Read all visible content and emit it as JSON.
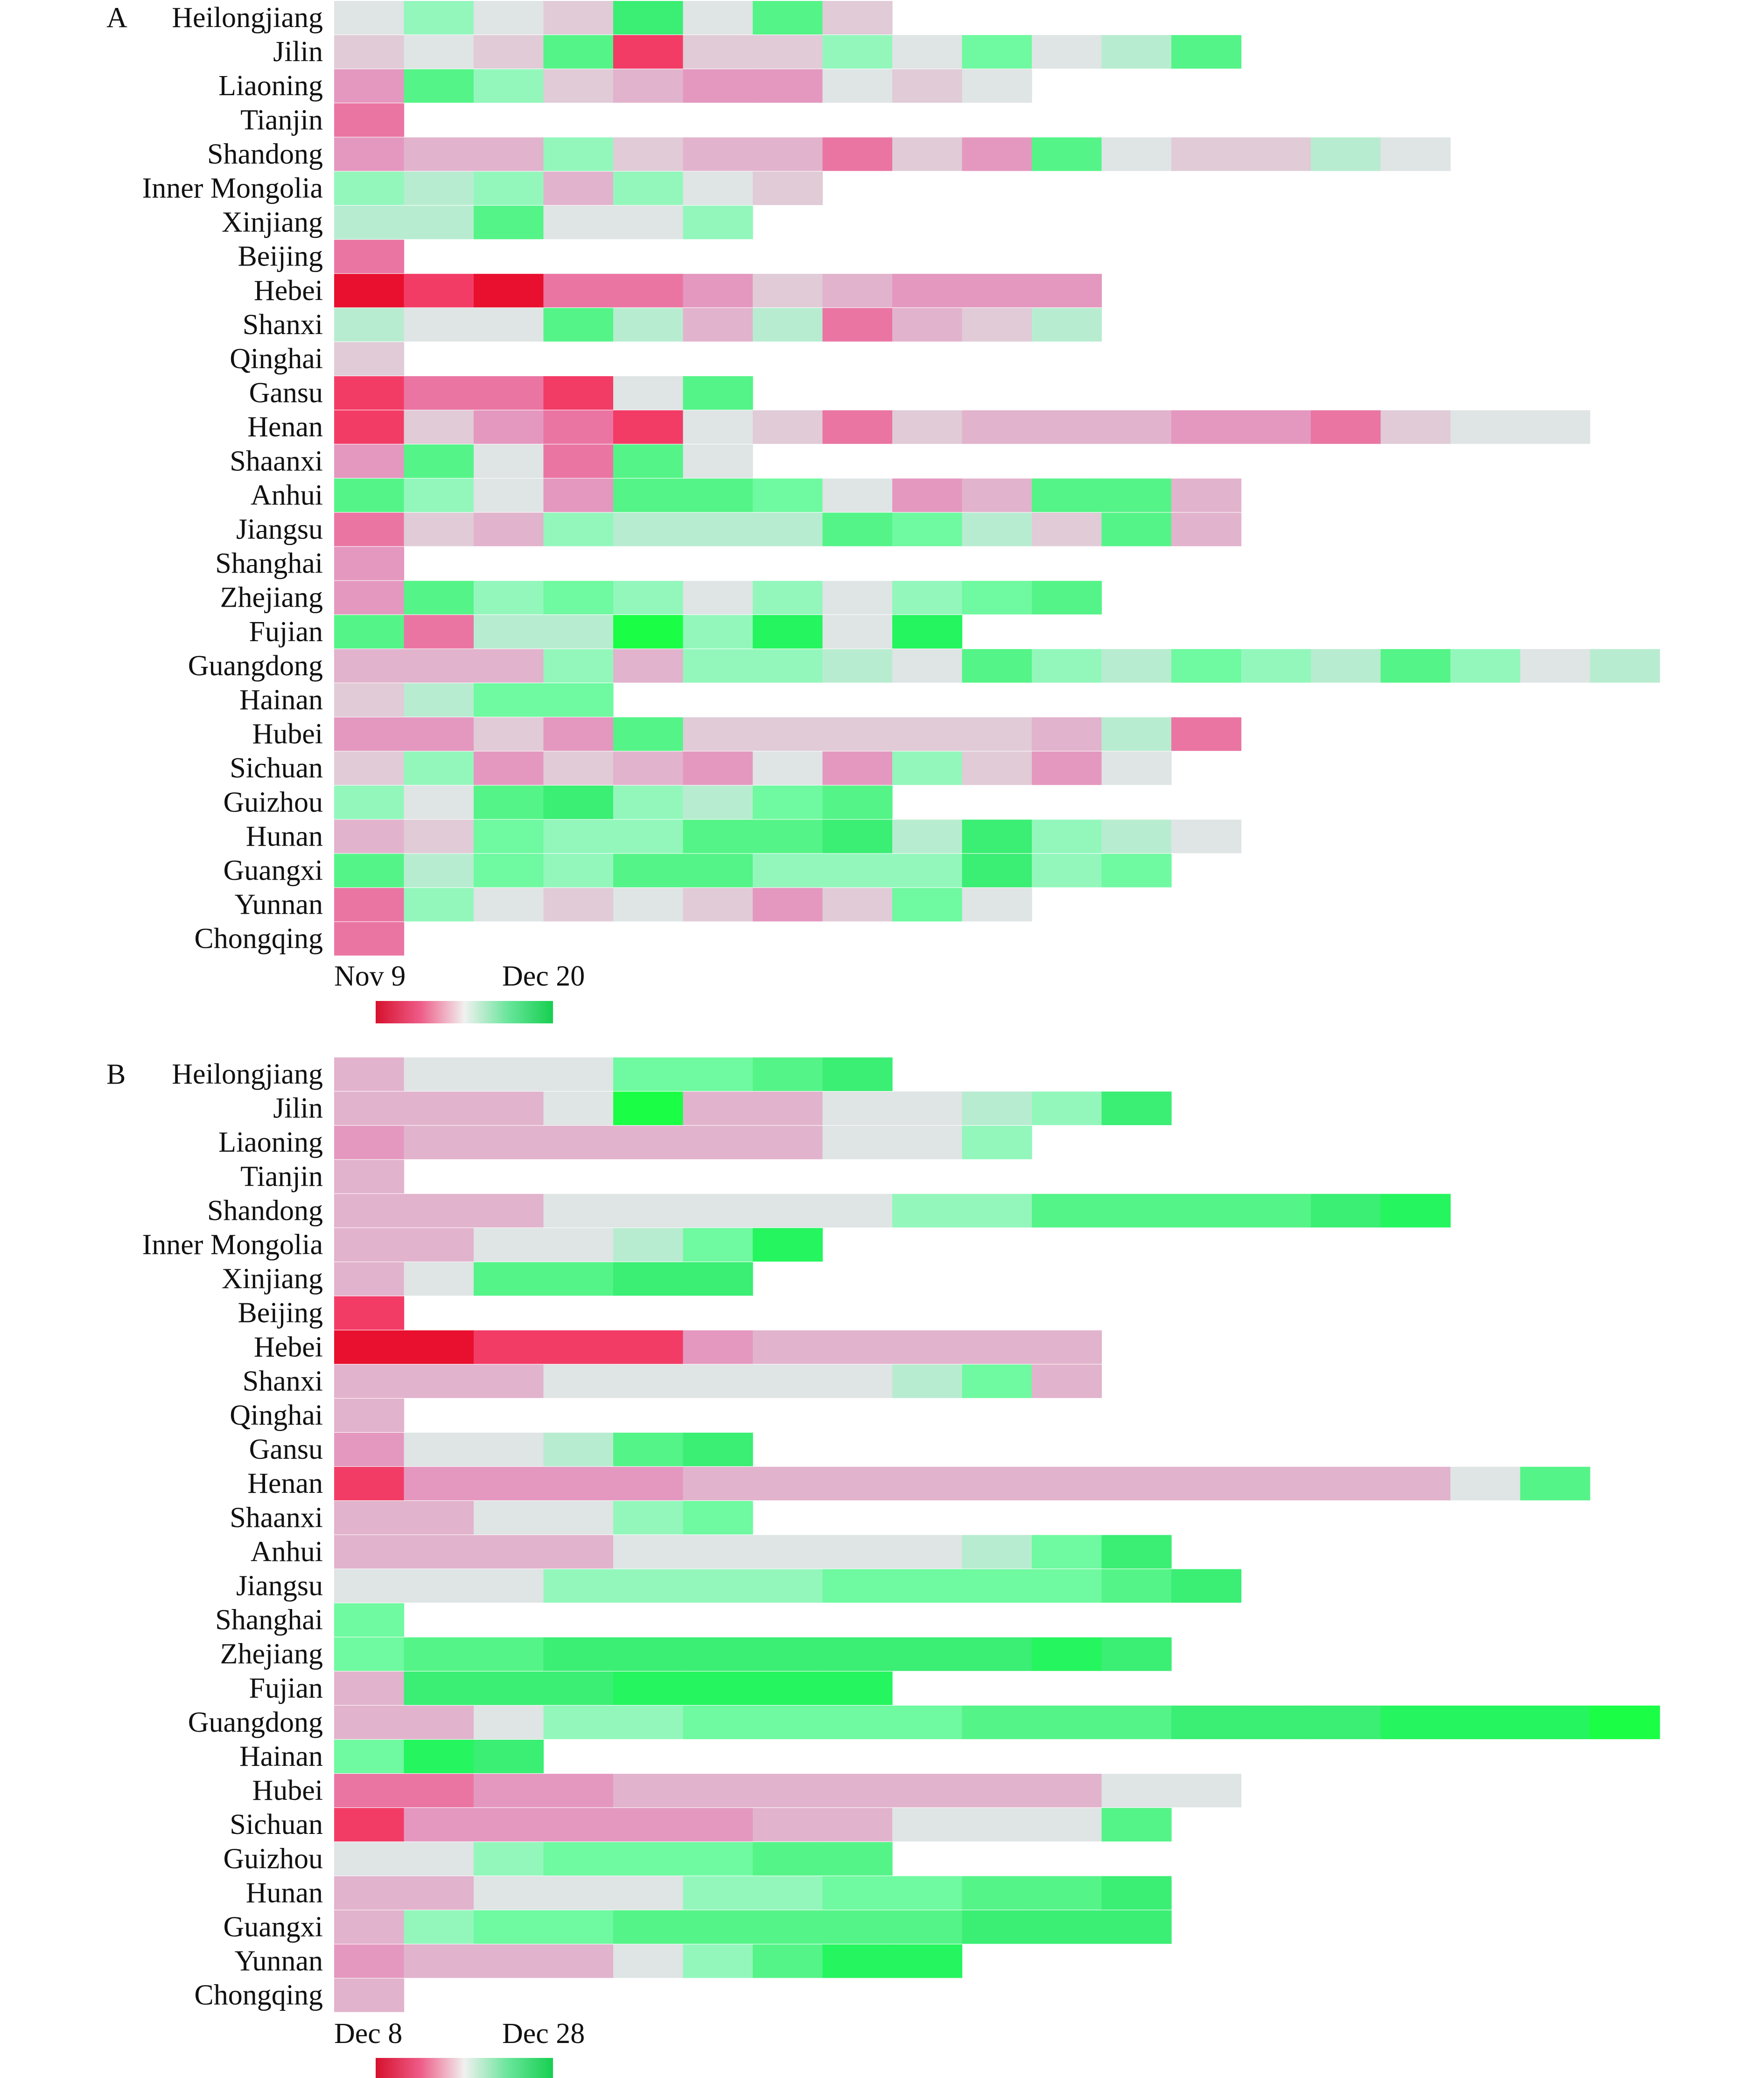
{
  "colors": {
    "scale": [
      "#e8102e",
      "#f23c66",
      "#ea75a3",
      "#e498bf",
      "#e2b3cd",
      "#e0cbd7",
      "#dfe4e4",
      "#b8ecd0",
      "#93f7bc",
      "#6ff9a0",
      "#55f488",
      "#3bee74",
      "#25f55e",
      "#1aff45"
    ],
    "legend_stops": [
      "#d6112d",
      "#ee5b87",
      "#f0f0f0",
      "#67e59a",
      "#16cf4f"
    ]
  },
  "chart_data": [
    {
      "panel": "A",
      "type": "heatmap",
      "title": "",
      "legend": {
        "start_label": "Nov 9",
        "end_label": "Dec 20"
      },
      "rows": [
        {
          "label": "Heilongjiang",
          "cells": [
            6,
            8,
            6,
            5,
            11,
            6,
            10,
            5
          ]
        },
        {
          "label": "Jilin",
          "cells": [
            5,
            6,
            5,
            10,
            1,
            5,
            5,
            8,
            6,
            9,
            6,
            7,
            10
          ]
        },
        {
          "label": "Liaoning",
          "cells": [
            3,
            10,
            8,
            5,
            4,
            3,
            3,
            6,
            5,
            6
          ]
        },
        {
          "label": "Tianjin",
          "cells": [
            2
          ]
        },
        {
          "label": "Shandong",
          "cells": [
            3,
            4,
            4,
            8,
            5,
            4,
            4,
            2,
            5,
            3,
            10,
            6,
            5,
            5,
            7,
            6
          ]
        },
        {
          "label": "Inner Mongolia",
          "cells": [
            8,
            7,
            8,
            4,
            8,
            6,
            5
          ]
        },
        {
          "label": "Xinjiang",
          "cells": [
            7,
            7,
            10,
            6,
            6,
            8
          ]
        },
        {
          "label": "Beijing",
          "cells": [
            2
          ]
        },
        {
          "label": "Hebei",
          "cells": [
            0,
            1,
            0,
            2,
            2,
            3,
            5,
            4,
            3,
            3,
            3
          ]
        },
        {
          "label": "Shanxi",
          "cells": [
            7,
            6,
            6,
            10,
            7,
            4,
            7,
            2,
            4,
            5,
            7
          ]
        },
        {
          "label": "Qinghai",
          "cells": [
            5
          ]
        },
        {
          "label": "Gansu",
          "cells": [
            1,
            2,
            2,
            1,
            6,
            10
          ]
        },
        {
          "label": "Henan",
          "cells": [
            1,
            5,
            3,
            2,
            1,
            6,
            5,
            2,
            5,
            4,
            4,
            4,
            3,
            3,
            2,
            5,
            6,
            6
          ]
        },
        {
          "label": "Shaanxi",
          "cells": [
            3,
            10,
            6,
            2,
            10,
            6
          ]
        },
        {
          "label": "Anhui",
          "cells": [
            10,
            8,
            6,
            3,
            10,
            10,
            9,
            6,
            3,
            4,
            10,
            10,
            4
          ]
        },
        {
          "label": "Jiangsu",
          "cells": [
            2,
            5,
            4,
            8,
            7,
            7,
            7,
            10,
            9,
            7,
            5,
            10,
            4
          ]
        },
        {
          "label": "Shanghai",
          "cells": [
            3
          ]
        },
        {
          "label": "Zhejiang",
          "cells": [
            3,
            10,
            8,
            9,
            8,
            6,
            8,
            6,
            8,
            9,
            10
          ]
        },
        {
          "label": "Fujian",
          "cells": [
            10,
            2,
            7,
            7,
            13,
            8,
            12,
            6,
            12
          ]
        },
        {
          "label": "Guangdong",
          "cells": [
            4,
            4,
            4,
            8,
            4,
            8,
            8,
            7,
            6,
            10,
            8,
            7,
            9,
            8,
            7,
            10,
            8,
            6,
            7
          ]
        },
        {
          "label": "Hainan",
          "cells": [
            5,
            7,
            9,
            9
          ]
        },
        {
          "label": "Hubei",
          "cells": [
            3,
            3,
            5,
            3,
            10,
            5,
            5,
            5,
            5,
            5,
            4,
            7,
            2
          ]
        },
        {
          "label": "Sichuan",
          "cells": [
            5,
            8,
            3,
            5,
            4,
            3,
            6,
            3,
            8,
            5,
            3,
            6
          ]
        },
        {
          "label": "Guizhou",
          "cells": [
            8,
            6,
            10,
            11,
            8,
            7,
            9,
            10
          ]
        },
        {
          "label": "Hunan",
          "cells": [
            4,
            5,
            9,
            8,
            8,
            10,
            10,
            11,
            7,
            11,
            8,
            7,
            6
          ]
        },
        {
          "label": "Guangxi",
          "cells": [
            10,
            7,
            9,
            8,
            10,
            10,
            8,
            8,
            8,
            11,
            8,
            9
          ]
        },
        {
          "label": "Yunnan",
          "cells": [
            2,
            8,
            6,
            5,
            6,
            5,
            3,
            5,
            9,
            6
          ]
        },
        {
          "label": "Chongqing",
          "cells": [
            2
          ]
        }
      ]
    },
    {
      "panel": "B",
      "type": "heatmap",
      "title": "",
      "legend": {
        "start_label": "Dec 8",
        "end_label": "Dec 28"
      },
      "rows": [
        {
          "label": "Heilongjiang",
          "cells": [
            4,
            6,
            6,
            6,
            9,
            9,
            10,
            11
          ]
        },
        {
          "label": "Jilin",
          "cells": [
            4,
            4,
            4,
            6,
            13,
            4,
            4,
            6,
            6,
            7,
            8,
            11
          ]
        },
        {
          "label": "Liaoning",
          "cells": [
            3,
            4,
            4,
            4,
            4,
            4,
            4,
            6,
            6,
            8
          ]
        },
        {
          "label": "Tianjin",
          "cells": [
            4
          ]
        },
        {
          "label": "Shandong",
          "cells": [
            4,
            4,
            4,
            6,
            6,
            6,
            6,
            6,
            8,
            8,
            10,
            10,
            10,
            10,
            11,
            12
          ]
        },
        {
          "label": "Inner Mongolia",
          "cells": [
            4,
            4,
            6,
            6,
            7,
            9,
            12
          ]
        },
        {
          "label": "Xinjiang",
          "cells": [
            4,
            6,
            10,
            10,
            11,
            11
          ]
        },
        {
          "label": "Beijing",
          "cells": [
            1
          ]
        },
        {
          "label": "Hebei",
          "cells": [
            0,
            0,
            1,
            1,
            1,
            3,
            4,
            4,
            4,
            4,
            4
          ]
        },
        {
          "label": "Shanxi",
          "cells": [
            4,
            4,
            4,
            6,
            6,
            6,
            6,
            6,
            7,
            9,
            4
          ]
        },
        {
          "label": "Qinghai",
          "cells": [
            4
          ]
        },
        {
          "label": "Gansu",
          "cells": [
            3,
            6,
            6,
            7,
            10,
            11
          ]
        },
        {
          "label": "Henan",
          "cells": [
            1,
            3,
            3,
            3,
            3,
            4,
            4,
            4,
            4,
            4,
            4,
            4,
            4,
            4,
            4,
            4,
            6,
            10
          ]
        },
        {
          "label": "Shaanxi",
          "cells": [
            4,
            4,
            6,
            6,
            8,
            9
          ]
        },
        {
          "label": "Anhui",
          "cells": [
            4,
            4,
            4,
            4,
            6,
            6,
            6,
            6,
            6,
            7,
            9,
            11
          ]
        },
        {
          "label": "Jiangsu",
          "cells": [
            6,
            6,
            6,
            8,
            8,
            8,
            8,
            9,
            9,
            9,
            9,
            10,
            11
          ]
        },
        {
          "label": "Shanghai",
          "cells": [
            9
          ]
        },
        {
          "label": "Zhejiang",
          "cells": [
            9,
            10,
            10,
            11,
            11,
            11,
            11,
            11,
            11,
            11,
            12,
            11
          ]
        },
        {
          "label": "Fujian",
          "cells": [
            4,
            11,
            11,
            11,
            12,
            12,
            12,
            12
          ]
        },
        {
          "label": "Guangdong",
          "cells": [
            4,
            4,
            6,
            8,
            8,
            9,
            9,
            9,
            9,
            10,
            10,
            10,
            11,
            11,
            11,
            12,
            12,
            12,
            13
          ]
        },
        {
          "label": "Hainan",
          "cells": [
            9,
            12,
            11
          ]
        },
        {
          "label": "Hubei",
          "cells": [
            2,
            2,
            3,
            3,
            4,
            4,
            4,
            4,
            4,
            4,
            4,
            6,
            6
          ]
        },
        {
          "label": "Sichuan",
          "cells": [
            1,
            3,
            3,
            3,
            3,
            3,
            4,
            4,
            6,
            6,
            6,
            10
          ]
        },
        {
          "label": "Guizhou",
          "cells": [
            6,
            6,
            8,
            9,
            9,
            9,
            10,
            10
          ]
        },
        {
          "label": "Hunan",
          "cells": [
            4,
            4,
            6,
            6,
            6,
            8,
            8,
            9,
            9,
            10,
            10,
            11
          ]
        },
        {
          "label": "Guangxi",
          "cells": [
            4,
            8,
            9,
            9,
            10,
            10,
            10,
            10,
            10,
            11,
            11,
            11
          ]
        },
        {
          "label": "Yunnan",
          "cells": [
            3,
            4,
            4,
            4,
            6,
            8,
            10,
            12,
            12
          ]
        },
        {
          "label": "Chongqing",
          "cells": [
            4
          ]
        }
      ]
    }
  ]
}
